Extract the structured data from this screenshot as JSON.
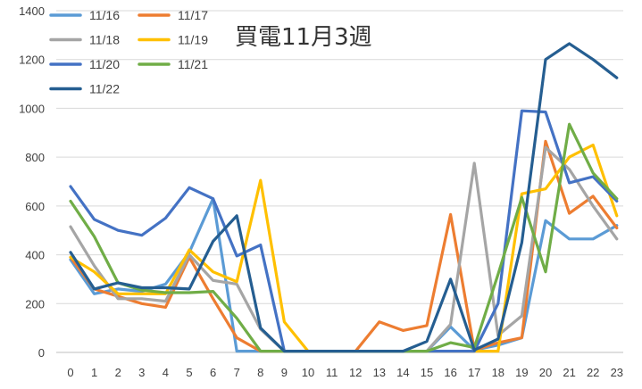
{
  "chart_data": {
    "type": "line",
    "title": "買電11月3週",
    "xlabel": "",
    "ylabel": "",
    "ylim": [
      0,
      1400
    ],
    "yticks": [
      0,
      200,
      400,
      600,
      800,
      1000,
      1200,
      1400
    ],
    "x": [
      0,
      1,
      2,
      3,
      4,
      5,
      6,
      7,
      8,
      9,
      10,
      11,
      12,
      13,
      14,
      15,
      16,
      17,
      18,
      19,
      20,
      21,
      22,
      23
    ],
    "grid": true,
    "legend_position": "top-left",
    "series": [
      {
        "name": "11/16",
        "color": "#5b9bd5",
        "values": [
          380,
          240,
          260,
          250,
          280,
          410,
          630,
          5,
          5,
          5,
          5,
          5,
          5,
          5,
          5,
          5,
          105,
          10,
          30,
          60,
          540,
          465,
          465,
          520
        ]
      },
      {
        "name": "11/17",
        "color": "#ed7d31",
        "values": [
          390,
          260,
          230,
          200,
          185,
          390,
          220,
          60,
          5,
          5,
          5,
          5,
          5,
          125,
          90,
          110,
          565,
          10,
          40,
          60,
          865,
          570,
          640,
          510
        ]
      },
      {
        "name": "11/18",
        "color": "#a5a5a5",
        "values": [
          515,
          355,
          220,
          220,
          210,
          400,
          295,
          280,
          95,
          5,
          5,
          5,
          5,
          5,
          5,
          5,
          115,
          775,
          70,
          150,
          840,
          750,
          600,
          465
        ]
      },
      {
        "name": "11/19",
        "color": "#ffc000",
        "values": [
          390,
          330,
          240,
          240,
          240,
          420,
          330,
          290,
          705,
          125,
          5,
          5,
          5,
          5,
          5,
          5,
          5,
          5,
          5,
          650,
          670,
          800,
          850,
          560
        ]
      },
      {
        "name": "11/20",
        "color": "#4472c4",
        "values": [
          680,
          545,
          500,
          480,
          550,
          675,
          630,
          395,
          440,
          5,
          5,
          5,
          5,
          5,
          5,
          5,
          5,
          5,
          200,
          990,
          985,
          695,
          720,
          620
        ]
      },
      {
        "name": "11/21",
        "color": "#70ad47",
        "values": [
          620,
          475,
          285,
          255,
          245,
          245,
          250,
          140,
          5,
          5,
          5,
          5,
          5,
          5,
          5,
          5,
          40,
          20,
          320,
          635,
          330,
          935,
          735,
          630
        ]
      },
      {
        "name": "11/22",
        "color": "#255e91",
        "values": [
          410,
          260,
          285,
          265,
          265,
          260,
          455,
          560,
          100,
          5,
          5,
          5,
          5,
          5,
          5,
          45,
          300,
          10,
          55,
          450,
          1200,
          1265,
          1200,
          1125
        ]
      }
    ]
  }
}
